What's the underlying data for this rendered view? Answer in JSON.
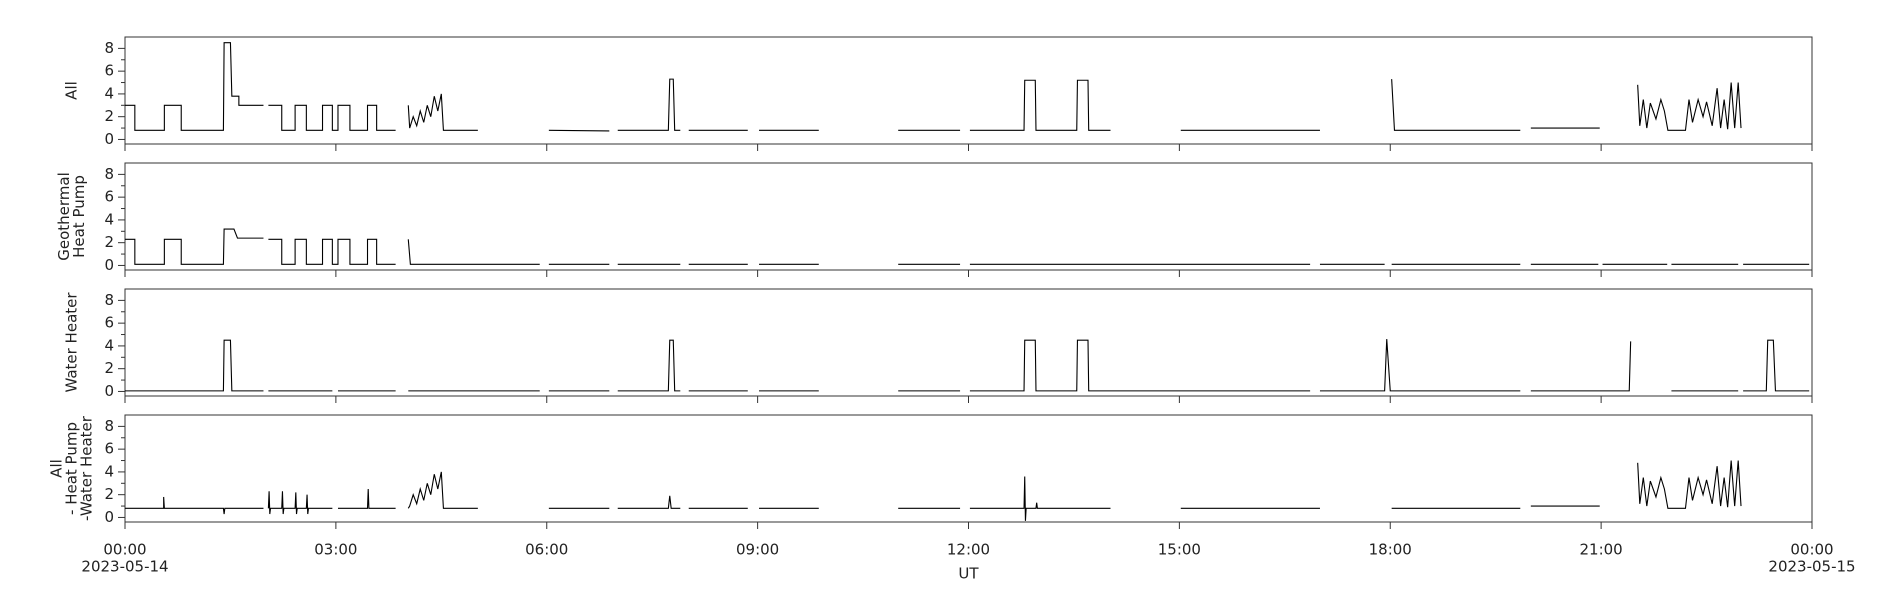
{
  "chart_data": [
    {
      "type": "line",
      "ylabel": [
        "All"
      ],
      "xlim": [
        0,
        24
      ],
      "ylim": [
        -0.4,
        9
      ],
      "yticks": [
        0,
        2,
        4,
        6,
        8
      ],
      "yminorticks": [
        1,
        3,
        5,
        7
      ],
      "xticks": [
        0,
        3,
        6,
        9,
        12,
        15,
        18,
        21,
        24
      ],
      "x": [
        0,
        0.14,
        0.14,
        0.56,
        0.56,
        0.8,
        0.8,
        1.4,
        1.41,
        1.5,
        1.52,
        1.62,
        1.62,
        1.97,
        2.0,
        2.04,
        2.23,
        2.23,
        2.42,
        2.42,
        2.58,
        2.58,
        2.81,
        2.81,
        2.95,
        2.95,
        3.03,
        3.03,
        3.2,
        3.2,
        3.45,
        3.45,
        3.58,
        3.58,
        3.85,
        3.95,
        4.03,
        4.05,
        4.1,
        4.15,
        4.2,
        4.25,
        4.3,
        4.35,
        4.4,
        4.45,
        4.5,
        4.53,
        5.02,
        5.5,
        6.03,
        6.89,
        6.95,
        7.01,
        7.73,
        7.75,
        7.8,
        7.82,
        7.9,
        7.96,
        8.02,
        8.86,
        8.94,
        9.02,
        9.87,
        10.4,
        11.0,
        11.88,
        11.95,
        12.02,
        12.79,
        12.8,
        12.95,
        12.96,
        13.54,
        13.55,
        13.7,
        13.71,
        14.02,
        14.5,
        15.02,
        17.0,
        17.5,
        18.02,
        18.06,
        19.85,
        19.92,
        20.0,
        20.98,
        21.25,
        21.52,
        21.55,
        21.6,
        21.65,
        21.7,
        21.78,
        21.85,
        21.9,
        21.95,
        22.2,
        22.25,
        22.3,
        22.38,
        22.45,
        22.5,
        22.58,
        22.65,
        22.7,
        22.75,
        22.8,
        22.85,
        22.9,
        22.95,
        22.99
      ],
      "series": [
        {
          "color": "#000000",
          "values": [
            3,
            3,
            0.8,
            0.8,
            3,
            3,
            0.8,
            0.8,
            8.5,
            8.5,
            3.8,
            3.8,
            3,
            3,
            null,
            3,
            3,
            0.8,
            0.8,
            3,
            3,
            0.8,
            0.8,
            3,
            3,
            0.8,
            0.8,
            3,
            3,
            0.8,
            0.8,
            3,
            3,
            0.8,
            0.8,
            null,
            3,
            1,
            2,
            1.2,
            2.5,
            1.5,
            3,
            2,
            3.8,
            2.5,
            4,
            0.8,
            0.8,
            null,
            0.8,
            0.75,
            null,
            0.8,
            0.8,
            5.3,
            5.3,
            0.8,
            0.8,
            null,
            0.8,
            0.8,
            null,
            0.8,
            0.8,
            null,
            0.8,
            0.8,
            null,
            0.8,
            0.8,
            5.2,
            5.2,
            0.8,
            0.8,
            5.2,
            5.2,
            0.8,
            0.8,
            null,
            0.8,
            0.8,
            null,
            5.3,
            0.8,
            0.8,
            null,
            1,
            1,
            null,
            4.8,
            1.2,
            3.5,
            1,
            3.2,
            1.8,
            3.5,
            2.5,
            0.8,
            0.8,
            3.5,
            1.5,
            3.5,
            2,
            3.3,
            1.2,
            4.5,
            1,
            3.5,
            0.9,
            5,
            1,
            5,
            1
          ]
        }
      ]
    },
    {
      "type": "line",
      "ylabel": [
        "Geothermal",
        "Heat Pump"
      ],
      "xlim": [
        0,
        24
      ],
      "ylim": [
        -0.4,
        9
      ],
      "yticks": [
        0,
        2,
        4,
        6,
        8
      ],
      "yminorticks": [
        1,
        3,
        5,
        7
      ],
      "xticks": [
        0,
        3,
        6,
        9,
        12,
        15,
        18,
        21,
        24
      ],
      "x": [
        0,
        0.14,
        0.14,
        0.56,
        0.56,
        0.8,
        0.8,
        1.4,
        1.41,
        1.55,
        1.6,
        1.97,
        2.0,
        2.04,
        2.23,
        2.23,
        2.42,
        2.42,
        2.58,
        2.58,
        2.81,
        2.81,
        2.95,
        2.95,
        3.03,
        3.03,
        3.2,
        3.2,
        3.45,
        3.45,
        3.58,
        3.58,
        3.85,
        3.95,
        4.03,
        4.06,
        5.9,
        5.96,
        6.03,
        6.89,
        6.95,
        7.01,
        7.9,
        7.96,
        8.02,
        8.86,
        8.94,
        9.02,
        9.87,
        10.4,
        11.0,
        11.88,
        11.95,
        12.02,
        16.86,
        16.93,
        17.0,
        17.92,
        17.97,
        18.02,
        19.85,
        19.92,
        20.0,
        20.96,
        20.99,
        21.02,
        21.94,
        21.97,
        22.0,
        22.95,
        22.98,
        23.02,
        23.96
      ],
      "series": [
        {
          "color": "#000000",
          "values": [
            2.3,
            2.3,
            0.1,
            0.1,
            2.3,
            2.3,
            0.1,
            0.1,
            3.2,
            3.2,
            2.4,
            2.4,
            null,
            2.3,
            2.3,
            0.1,
            0.1,
            2.3,
            2.3,
            0.1,
            0.1,
            2.3,
            2.3,
            0.1,
            0.1,
            2.3,
            2.3,
            0.1,
            0.1,
            2.3,
            2.3,
            0.1,
            0.1,
            null,
            2.3,
            0.1,
            0.1,
            null,
            0.1,
            0.1,
            null,
            0.1,
            0.1,
            null,
            0.1,
            0.1,
            null,
            0.1,
            0.1,
            null,
            0.1,
            0.1,
            null,
            0.1,
            0.1,
            null,
            0.1,
            0.1,
            null,
            0.1,
            0.1,
            null,
            0.1,
            0.1,
            null,
            0.1,
            0.1,
            null,
            0.1,
            0.1,
            null,
            0.1,
            0.1
          ]
        }
      ]
    },
    {
      "type": "line",
      "ylabel": [
        "Water Heater"
      ],
      "xlim": [
        0,
        24
      ],
      "ylim": [
        -0.4,
        9
      ],
      "yticks": [
        0,
        2,
        4,
        6,
        8
      ],
      "yminorticks": [
        1,
        3,
        5,
        7
      ],
      "xticks": [
        0,
        3,
        6,
        9,
        12,
        15,
        18,
        21,
        24
      ],
      "x": [
        0,
        1.4,
        1.41,
        1.5,
        1.52,
        1.97,
        2.0,
        2.04,
        2.95,
        2.99,
        3.03,
        3.85,
        3.95,
        4.03,
        5.9,
        5.96,
        6.03,
        6.89,
        6.95,
        7.01,
        7.73,
        7.75,
        7.8,
        7.82,
        7.9,
        7.96,
        8.02,
        8.86,
        8.94,
        9.02,
        9.87,
        10.4,
        11.0,
        11.88,
        11.95,
        12.02,
        12.79,
        12.8,
        12.95,
        12.96,
        13.54,
        13.55,
        13.7,
        13.71,
        16.86,
        16.93,
        17.0,
        17.92,
        17.95,
        18.0,
        19.85,
        19.92,
        20.0,
        21.4,
        21.42,
        21.44,
        22.0,
        22.95,
        22.98,
        23.02,
        23.35,
        23.37,
        23.45,
        23.48,
        23.96
      ],
      "series": [
        {
          "color": "#000000",
          "values": [
            0.05,
            0.05,
            4.5,
            4.5,
            0.05,
            0.05,
            null,
            0.05,
            0.05,
            null,
            0.05,
            0.05,
            null,
            0.05,
            0.05,
            null,
            0.05,
            0.05,
            null,
            0.05,
            0.05,
            4.5,
            4.5,
            0.05,
            0.05,
            null,
            0.05,
            0.05,
            null,
            0.05,
            0.05,
            null,
            0.05,
            0.05,
            null,
            0.05,
            0.05,
            4.5,
            4.5,
            0.05,
            0.05,
            4.5,
            4.5,
            0.05,
            0.05,
            null,
            0.05,
            0.05,
            4.6,
            0.05,
            0.05,
            null,
            0.05,
            0.05,
            4.4,
            null,
            0.05,
            0.05,
            null,
            0.05,
            0.05,
            4.5,
            4.5,
            0.05,
            0.05
          ]
        }
      ]
    },
    {
      "type": "line",
      "ylabel": [
        "All",
        "- Heat Pump",
        "-Water Heater"
      ],
      "xlabel": "UT",
      "xlim": [
        0,
        24
      ],
      "ylim": [
        -0.4,
        9
      ],
      "yticks": [
        0,
        2,
        4,
        6,
        8
      ],
      "yminorticks": [
        1,
        3,
        5,
        7
      ],
      "xticks": [
        {
          "value": 0,
          "label": "00:00"
        },
        {
          "value": 3,
          "label": "03:00"
        },
        {
          "value": 6,
          "label": "06:00"
        },
        {
          "value": 9,
          "label": "09:00"
        },
        {
          "value": 12,
          "label": "12:00"
        },
        {
          "value": 15,
          "label": "15:00"
        },
        {
          "value": 18,
          "label": "18:00"
        },
        {
          "value": 21,
          "label": "21:00"
        },
        {
          "value": 24,
          "label": "00:00"
        }
      ],
      "xtick_dates": [
        {
          "value": 0,
          "label": "2023-05-14"
        },
        {
          "value": 24,
          "label": "2023-05-15"
        }
      ],
      "x": [
        0,
        0.55,
        0.55,
        0.56,
        1.4,
        1.41,
        1.42,
        1.97,
        2.0,
        2.04,
        2.05,
        2.06,
        2.07,
        2.23,
        2.24,
        2.25,
        2.26,
        2.42,
        2.43,
        2.44,
        2.45,
        2.58,
        2.59,
        2.6,
        2.61,
        2.95,
        2.99,
        3.03,
        3.45,
        3.46,
        3.47,
        3.85,
        3.95,
        4.03,
        4.05,
        4.1,
        4.15,
        4.2,
        4.25,
        4.3,
        4.35,
        4.4,
        4.45,
        4.5,
        4.53,
        5.02,
        5.5,
        6.03,
        6.89,
        6.95,
        7.01,
        7.73,
        7.75,
        7.77,
        7.9,
        7.96,
        8.02,
        8.86,
        8.94,
        9.02,
        9.87,
        10.4,
        11.0,
        11.88,
        11.95,
        12.02,
        12.79,
        12.8,
        12.81,
        12.82,
        12.96,
        12.97,
        12.98,
        14.02,
        14.5,
        15.02,
        17.0,
        17.5,
        18.02,
        19.85,
        19.92,
        20.0,
        20.98,
        21.25,
        21.52,
        21.55,
        21.6,
        21.65,
        21.7,
        21.78,
        21.85,
        21.9,
        21.95,
        22.2,
        22.25,
        22.3,
        22.38,
        22.45,
        22.5,
        22.58,
        22.65,
        22.7,
        22.75,
        22.8,
        22.85,
        22.9,
        22.95,
        22.99
      ],
      "series": [
        {
          "color": "#000000",
          "values": [
            0.8,
            0.8,
            1.8,
            0.8,
            0.8,
            0.3,
            0.8,
            0.8,
            null,
            0.8,
            2.3,
            0.3,
            0.8,
            0.8,
            2.3,
            0.3,
            0.8,
            0.8,
            2.2,
            0.3,
            0.8,
            0.8,
            2,
            0.3,
            0.8,
            0.8,
            null,
            0.8,
            0.8,
            2.5,
            0.8,
            0.8,
            null,
            0.8,
            1,
            2,
            1.2,
            2.5,
            1.5,
            3,
            2,
            3.8,
            2.5,
            4,
            0.8,
            0.8,
            null,
            0.8,
            0.8,
            null,
            0.8,
            0.8,
            1.9,
            0.8,
            0.8,
            null,
            0.8,
            0.8,
            null,
            0.8,
            0.8,
            null,
            0.8,
            0.8,
            null,
            0.8,
            0.8,
            3.6,
            -0.3,
            0.8,
            0.8,
            1.3,
            0.8,
            0.8,
            null,
            0.8,
            0.8,
            null,
            0.8,
            0.8,
            null,
            1,
            1,
            null,
            4.8,
            1.2,
            3.5,
            1,
            3.2,
            1.8,
            3.5,
            2.5,
            0.8,
            0.8,
            3.5,
            1.5,
            3.5,
            2,
            3.3,
            1.2,
            4.5,
            1,
            3.5,
            0.9,
            5,
            1,
            5,
            1
          ]
        }
      ]
    }
  ]
}
